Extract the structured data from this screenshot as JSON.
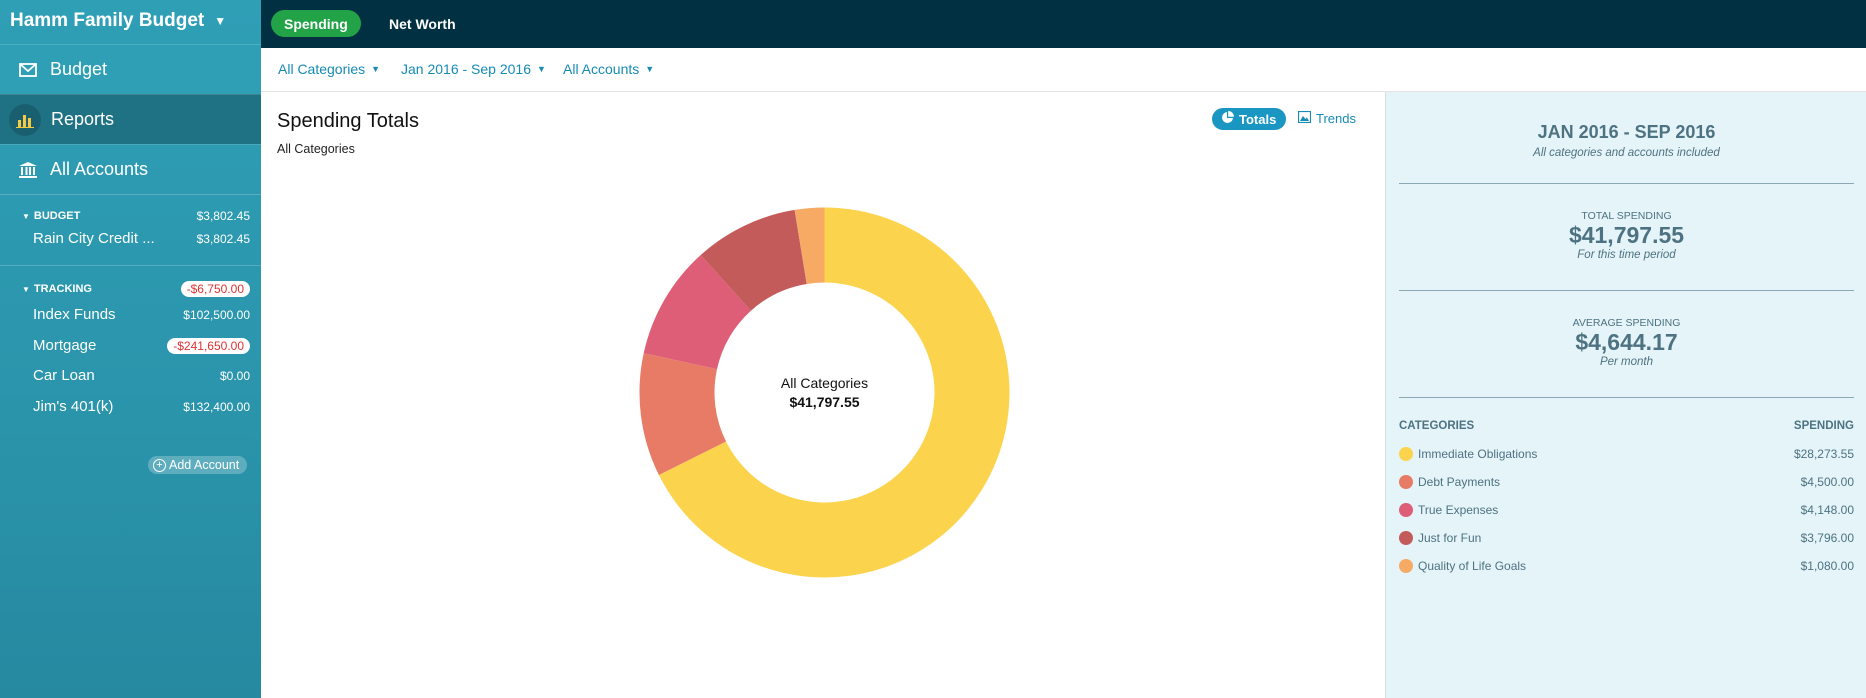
{
  "sidebar": {
    "budget_name": "Hamm Family Budget",
    "nav": [
      {
        "label": "Budget",
        "icon": "envelope-icon"
      },
      {
        "label": "Reports",
        "icon": "bar-chart-icon"
      },
      {
        "label": "All Accounts",
        "icon": "bank-icon"
      }
    ],
    "budget_section": {
      "label": "BUDGET",
      "total": "$3,802.45",
      "accounts": [
        {
          "name": "Rain City Credit ...",
          "balance": "$3,802.45"
        }
      ]
    },
    "tracking_section": {
      "label": "TRACKING",
      "total": "-$6,750.00",
      "accounts": [
        {
          "name": "Index Funds",
          "balance": "$102,500.00"
        },
        {
          "name": "Mortgage",
          "balance": "-$241,650.00"
        },
        {
          "name": "Car Loan",
          "balance": "$0.00"
        },
        {
          "name": "Jim's 401(k)",
          "balance": "$132,400.00"
        }
      ]
    },
    "add_account_label": "Add Account"
  },
  "topbar": {
    "tabs": [
      {
        "label": "Spending",
        "active": true
      },
      {
        "label": "Net Worth",
        "active": false
      }
    ]
  },
  "filters": {
    "categories": "All Categories",
    "date_range": "Jan 2016 - Sep 2016",
    "accounts": "All Accounts"
  },
  "main": {
    "title": "Spending Totals",
    "subtitle": "All Categories",
    "toggle_totals": "Totals",
    "toggle_trends": "Trends",
    "center_label": "All Categories",
    "center_value": "$41,797.55"
  },
  "chart_data": {
    "type": "pie",
    "donut": true,
    "categories": [
      "Immediate Obligations",
      "Debt Payments",
      "True Expenses",
      "Just for Fun",
      "Quality of Life Goals"
    ],
    "values": [
      28273.55,
      4500.0,
      4148.0,
      3796.0,
      1080.0
    ],
    "colors": [
      "#fcd34c",
      "#e77b65",
      "#dd5e76",
      "#c45b5b",
      "#f6aa64"
    ],
    "total": 41797.55
  },
  "summary": {
    "period": "JAN 2016 - SEP 2016",
    "period_note": "All categories and accounts included",
    "total_label": "TOTAL SPENDING",
    "total_value": "$41,797.55",
    "total_note": "For this time period",
    "avg_label": "AVERAGE SPENDING",
    "avg_value": "$4,644.17",
    "avg_note": "Per month",
    "col_categories": "CATEGORIES",
    "col_spending": "SPENDING",
    "rows": [
      {
        "name": "Immediate Obligations",
        "amount": "$28,273.55",
        "color": "#fcd34c"
      },
      {
        "name": "Debt Payments",
        "amount": "$4,500.00",
        "color": "#e77b65"
      },
      {
        "name": "True Expenses",
        "amount": "$4,148.00",
        "color": "#dd5e76"
      },
      {
        "name": "Just for Fun",
        "amount": "$3,796.00",
        "color": "#c45b5b"
      },
      {
        "name": "Quality of Life Goals",
        "amount": "$1,080.00",
        "color": "#f6aa64"
      }
    ]
  }
}
